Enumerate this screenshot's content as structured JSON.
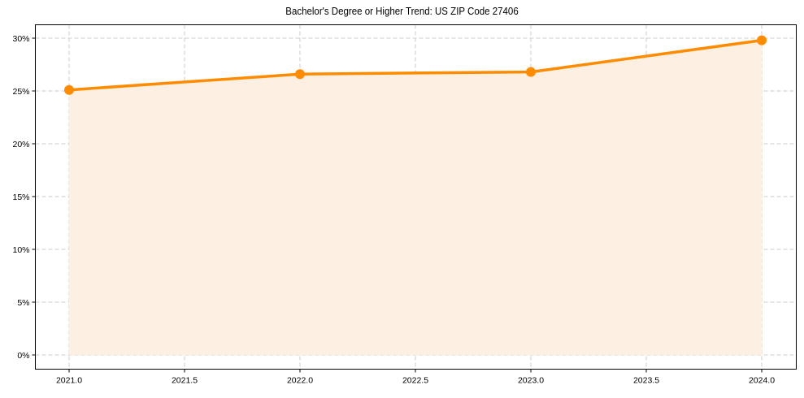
{
  "chart_data": {
    "type": "line",
    "title": "Bachelor's Degree or Higher Trend: US ZIP Code 27406",
    "xlabel": "",
    "ylabel": "",
    "x": [
      2021.0,
      2022.0,
      2023.0,
      2024.0
    ],
    "series": [
      {
        "name": "Bachelor's Degree or Higher",
        "values": [
          25.1,
          26.6,
          26.8,
          29.8
        ],
        "color": "#ff8c00",
        "fill": "#fdf0e2"
      }
    ],
    "xticks": [
      "2021.0",
      "2021.5",
      "2022.0",
      "2022.5",
      "2023.0",
      "2023.5",
      "2024.0"
    ],
    "yticks": [
      "0%",
      "5%",
      "10%",
      "15%",
      "20%",
      "25%",
      "30%"
    ],
    "xlim": [
      2020.85,
      2024.15
    ],
    "ylim": [
      -1.4,
      31.3
    ],
    "grid": true,
    "legend": null
  }
}
